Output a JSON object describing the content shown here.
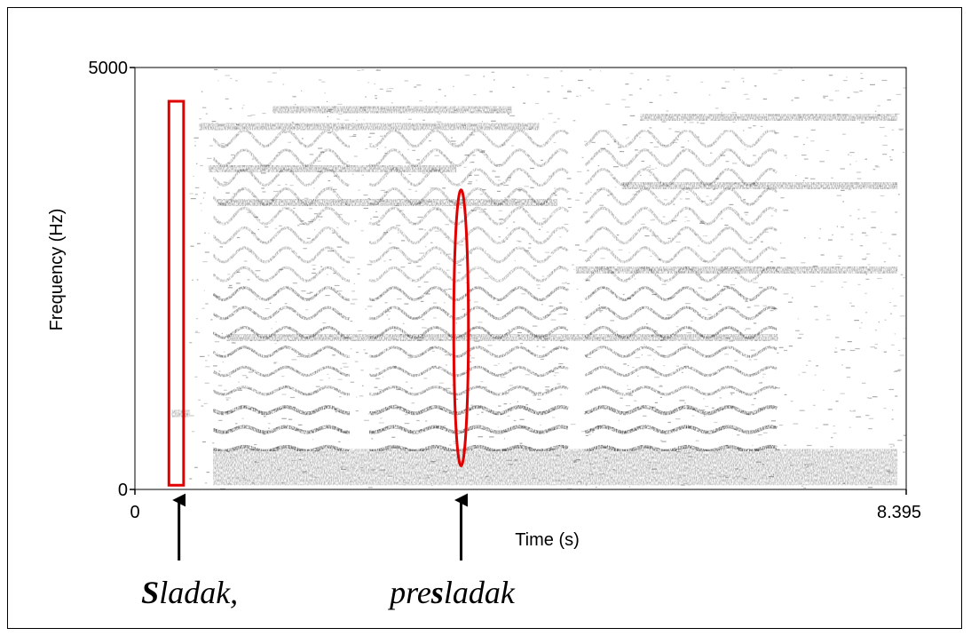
{
  "chart_data": {
    "type": "heatmap",
    "kind": "spectrogram",
    "xlabel": "Time (s)",
    "ylabel": "Frequency (Hz)",
    "xlim": [
      0,
      8.395
    ],
    "ylim": [
      0,
      5000
    ],
    "x_ticks": [
      "0",
      "8.395"
    ],
    "y_ticks": [
      "5000",
      "0"
    ],
    "colormap": "grayscale (darker = more energy)",
    "markers": [
      {
        "shape": "rectangle",
        "color": "#e00000",
        "time_range": [
          0.37,
          0.53
        ],
        "freq_range": [
          50,
          4600
        ]
      },
      {
        "shape": "ellipse",
        "color": "#e00000",
        "time_center": 3.55,
        "time_halfwidth": 0.08,
        "freq_range": [
          280,
          3550
        ]
      }
    ],
    "annotations": [
      {
        "text_bold": "S",
        "text_rest": "ladak,",
        "time": 0.48
      },
      {
        "text_before": "pre",
        "text_bold": "s",
        "text_after": "ladak",
        "time": 3.55
      }
    ]
  }
}
